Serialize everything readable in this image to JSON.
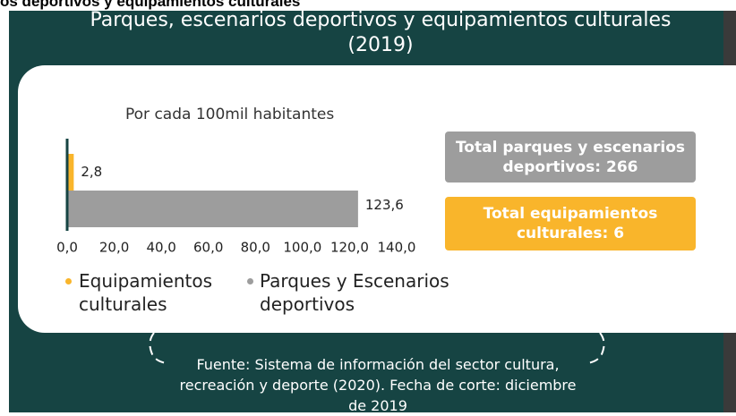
{
  "header": "os deportivos y equipamientos culturales",
  "chart_data": {
    "type": "bar",
    "orientation": "horizontal",
    "title": "Parques, escenarios deportivos y equipamientos culturales",
    "subtitle": "(2019)",
    "axis_note": "Por cada 100mil habitantes",
    "series": [
      {
        "name": "Equipamientos culturales",
        "color": "#f9b52b",
        "values": [
          2.8
        ],
        "value_labels": [
          "2,8"
        ]
      },
      {
        "name": "Parques y Escenarios deportivos",
        "color": "#9d9d9d",
        "values": [
          123.6
        ],
        "value_labels": [
          "123,6"
        ]
      }
    ],
    "xlim": [
      0,
      140
    ],
    "xticks": [
      {
        "value": 0,
        "label": "0,0"
      },
      {
        "value": 20,
        "label": "20,0"
      },
      {
        "value": 40,
        "label": "40,0"
      },
      {
        "value": 60,
        "label": "60,0"
      },
      {
        "value": 80,
        "label": "80,0"
      },
      {
        "value": 100,
        "label": "100,0"
      },
      {
        "value": 120,
        "label": "120,0"
      },
      {
        "value": 140,
        "label": "140,0"
      }
    ],
    "annotations": [
      "Total parques y escenarios deportivos: 266",
      "Total equipamientos culturales: 6"
    ],
    "source": "Fuente: Sistema de información del sector cultura, recreación y deporte (2020). Fecha de corte: diciembre de 2019"
  }
}
